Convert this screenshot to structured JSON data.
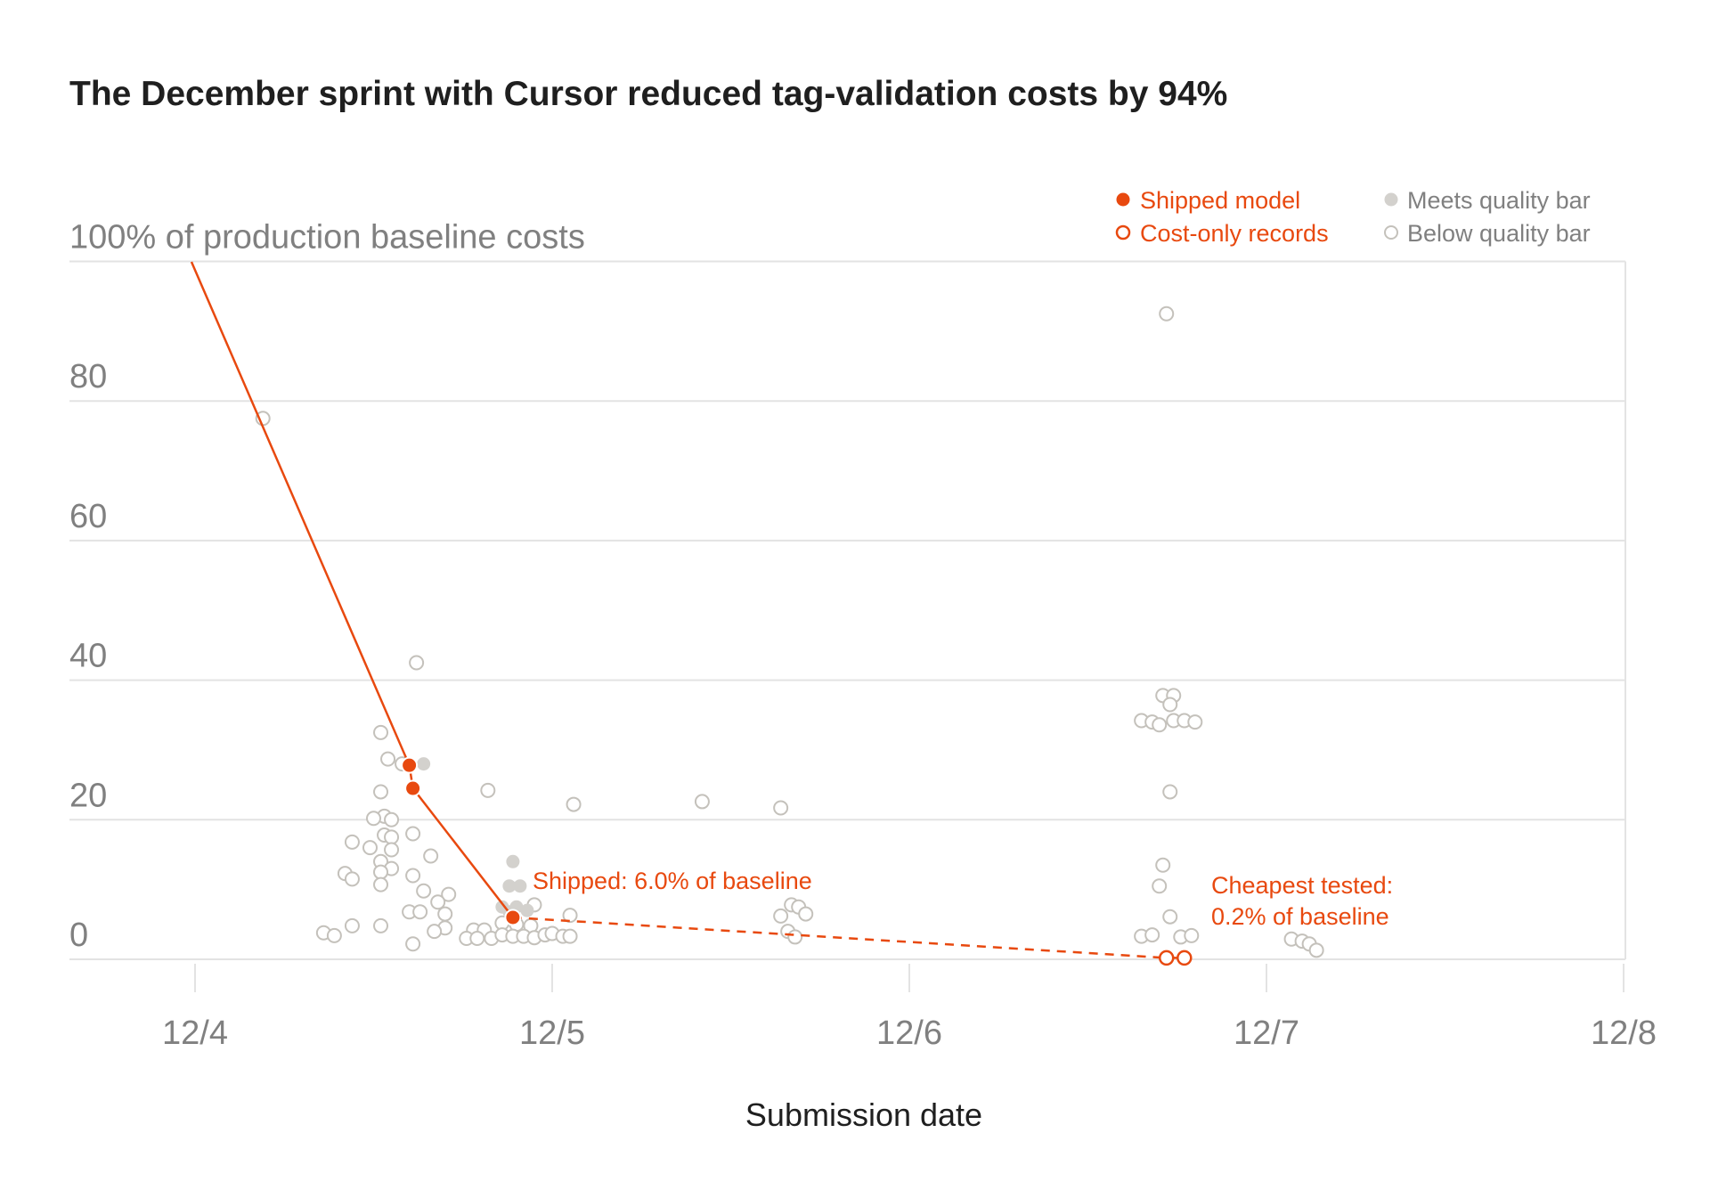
{
  "colors": {
    "accent": "#e8490f",
    "meets": "#d3d1cd",
    "below_stroke": "#c4c1bb",
    "grid": "#e3e3e3",
    "axis_text": "#808080",
    "title": "#1f1f1f"
  },
  "legend": {
    "shipped": "Shipped model",
    "cost_only": "Cost-only records",
    "meets": "Meets quality bar",
    "below": "Below quality bar"
  },
  "annotations": {
    "shipped": "Shipped: 6.0% of baseline",
    "cheapest_line1": "Cheapest tested:",
    "cheapest_line2": "0.2% of baseline"
  },
  "chart_data": {
    "type": "scatter",
    "title": "The December sprint with Cursor reduced tag-validation costs by 94%",
    "xlabel": "Submission date",
    "ylabel": "% of production baseline costs",
    "x_axis": {
      "ticks": [
        "12/4",
        "12/5",
        "12/6",
        "12/7",
        "12/8"
      ],
      "domain_days": [
        3.6,
        8.0
      ]
    },
    "y_axis": {
      "ticks": [
        0,
        20,
        40,
        60,
        80,
        100
      ],
      "tick_labels": [
        "0",
        "20",
        "40",
        "60",
        "80",
        "100% of production baseline costs"
      ],
      "ylim": [
        -5,
        100
      ]
    },
    "grid": true,
    "legend_position": "top-right",
    "series": [
      {
        "name": "Shipped model",
        "style": "line-markers",
        "points": [
          {
            "day": 3.99,
            "y": 100.4
          },
          {
            "day": 4.6,
            "y": 27.8
          },
          {
            "day": 4.61,
            "y": 24.5
          },
          {
            "day": 4.89,
            "y": 6.0
          }
        ]
      },
      {
        "name": "Cost-only records",
        "style": "dashed-open",
        "points": [
          {
            "day": 4.89,
            "y": 6.0
          },
          {
            "day": 6.72,
            "y": 0.2
          },
          {
            "day": 6.77,
            "y": 0.2
          }
        ]
      },
      {
        "name": "Meets quality bar",
        "style": "filled",
        "points": [
          {
            "day": 4.64,
            "y": 28.0
          },
          {
            "day": 4.89,
            "y": 14.0
          },
          {
            "day": 4.88,
            "y": 10.5
          },
          {
            "day": 4.91,
            "y": 10.5
          },
          {
            "day": 4.86,
            "y": 7.5
          },
          {
            "day": 4.9,
            "y": 7.5
          },
          {
            "day": 4.88,
            "y": 6.8
          },
          {
            "day": 4.93,
            "y": 7.0
          }
        ]
      },
      {
        "name": "Below quality bar",
        "style": "open",
        "points": [
          {
            "day": 4.19,
            "y": 77.5
          },
          {
            "day": 4.62,
            "y": 42.5
          },
          {
            "day": 4.52,
            "y": 32.5
          },
          {
            "day": 4.54,
            "y": 28.7
          },
          {
            "day": 4.58,
            "y": 28.0
          },
          {
            "day": 4.52,
            "y": 24.0
          },
          {
            "day": 4.53,
            "y": 20.5
          },
          {
            "day": 4.5,
            "y": 20.2
          },
          {
            "day": 4.55,
            "y": 20.0
          },
          {
            "day": 4.53,
            "y": 17.8
          },
          {
            "day": 4.55,
            "y": 17.5
          },
          {
            "day": 4.61,
            "y": 18.0
          },
          {
            "day": 4.44,
            "y": 16.8
          },
          {
            "day": 4.49,
            "y": 16.0
          },
          {
            "day": 4.55,
            "y": 15.7
          },
          {
            "day": 4.52,
            "y": 14.0
          },
          {
            "day": 4.66,
            "y": 14.8
          },
          {
            "day": 4.55,
            "y": 13.0
          },
          {
            "day": 4.52,
            "y": 12.5
          },
          {
            "day": 4.42,
            "y": 12.3
          },
          {
            "day": 4.44,
            "y": 11.5
          },
          {
            "day": 4.61,
            "y": 12.0
          },
          {
            "day": 4.52,
            "y": 10.7
          },
          {
            "day": 4.64,
            "y": 9.8
          },
          {
            "day": 4.71,
            "y": 9.3
          },
          {
            "day": 4.68,
            "y": 8.2
          },
          {
            "day": 4.6,
            "y": 6.8
          },
          {
            "day": 4.63,
            "y": 6.8
          },
          {
            "day": 4.7,
            "y": 6.5
          },
          {
            "day": 4.7,
            "y": 4.5
          },
          {
            "day": 4.67,
            "y": 4.0
          },
          {
            "day": 4.44,
            "y": 4.8
          },
          {
            "day": 4.52,
            "y": 4.8
          },
          {
            "day": 4.36,
            "y": 3.8
          },
          {
            "day": 4.39,
            "y": 3.4
          },
          {
            "day": 4.61,
            "y": 2.2
          },
          {
            "day": 4.82,
            "y": 24.2
          },
          {
            "day": 5.06,
            "y": 22.2
          },
          {
            "day": 5.42,
            "y": 22.6
          },
          {
            "day": 5.64,
            "y": 21.7
          },
          {
            "day": 4.95,
            "y": 7.8
          },
          {
            "day": 5.05,
            "y": 6.3
          },
          {
            "day": 4.86,
            "y": 5.2
          },
          {
            "day": 4.9,
            "y": 5.0
          },
          {
            "day": 4.94,
            "y": 4.8
          },
          {
            "day": 4.78,
            "y": 4.2
          },
          {
            "day": 4.81,
            "y": 4.2
          },
          {
            "day": 4.76,
            "y": 3.0
          },
          {
            "day": 4.79,
            "y": 3.0
          },
          {
            "day": 4.83,
            "y": 3.0
          },
          {
            "day": 4.86,
            "y": 3.5
          },
          {
            "day": 4.89,
            "y": 3.3
          },
          {
            "day": 4.92,
            "y": 3.3
          },
          {
            "day": 4.95,
            "y": 3.1
          },
          {
            "day": 4.98,
            "y": 3.5
          },
          {
            "day": 5.0,
            "y": 3.7
          },
          {
            "day": 5.03,
            "y": 3.3
          },
          {
            "day": 5.05,
            "y": 3.3
          },
          {
            "day": 5.67,
            "y": 7.8
          },
          {
            "day": 5.69,
            "y": 7.5
          },
          {
            "day": 5.64,
            "y": 6.2
          },
          {
            "day": 5.71,
            "y": 6.5
          },
          {
            "day": 5.66,
            "y": 4.0
          },
          {
            "day": 5.68,
            "y": 3.2
          },
          {
            "day": 6.72,
            "y": 92.5
          },
          {
            "day": 6.71,
            "y": 37.8
          },
          {
            "day": 6.74,
            "y": 37.8
          },
          {
            "day": 6.73,
            "y": 36.5
          },
          {
            "day": 6.65,
            "y": 34.2
          },
          {
            "day": 6.68,
            "y": 34.0
          },
          {
            "day": 6.7,
            "y": 33.6
          },
          {
            "day": 6.74,
            "y": 34.2
          },
          {
            "day": 6.77,
            "y": 34.2
          },
          {
            "day": 6.8,
            "y": 34.0
          },
          {
            "day": 6.73,
            "y": 24.0
          },
          {
            "day": 6.71,
            "y": 13.5
          },
          {
            "day": 6.7,
            "y": 10.5
          },
          {
            "day": 6.73,
            "y": 6.1
          },
          {
            "day": 6.65,
            "y": 3.3
          },
          {
            "day": 6.68,
            "y": 3.5
          },
          {
            "day": 6.76,
            "y": 3.2
          },
          {
            "day": 6.79,
            "y": 3.4
          },
          {
            "day": 7.07,
            "y": 2.9
          },
          {
            "day": 7.1,
            "y": 2.6
          },
          {
            "day": 7.12,
            "y": 2.2
          },
          {
            "day": 7.14,
            "y": 1.3
          }
        ]
      }
    ]
  }
}
